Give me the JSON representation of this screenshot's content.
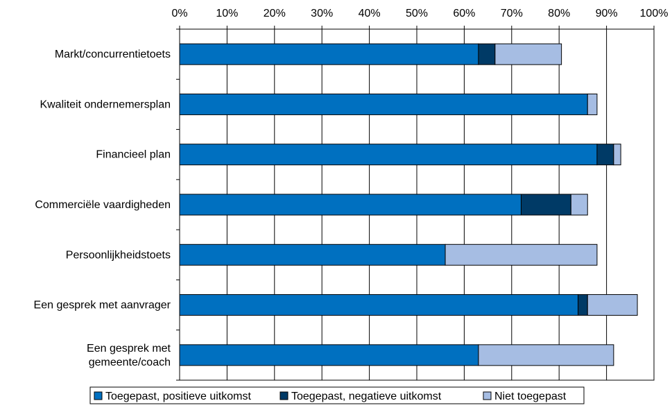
{
  "chart_data": {
    "type": "bar",
    "orientation": "horizontal",
    "stacked": true,
    "title": "",
    "xlabel": "",
    "ylabel": "",
    "xlim": [
      0,
      100
    ],
    "x_tick_labels": [
      "0%",
      "10%",
      "20%",
      "30%",
      "40%",
      "50%",
      "60%",
      "70%",
      "80%",
      "90%",
      "100%"
    ],
    "x_axis_position": "top",
    "grid": {
      "vertical": true,
      "horizontal": false
    },
    "legend_position": "bottom",
    "categories": [
      [
        "Markt/concurrentietoets"
      ],
      [
        "Kwaliteit ondernemersplan"
      ],
      [
        "Financieel plan"
      ],
      [
        "Commerciële vaardigheden"
      ],
      [
        "Persoonlijkheidstoets"
      ],
      [
        "Een gesprek met aanvrager"
      ],
      [
        "Een gesprek met",
        "gemeente/coach"
      ]
    ],
    "series": [
      {
        "name": "Toegepast, positieve uitkomst",
        "color": "#0070C0",
        "values": [
          63,
          86,
          88,
          72,
          56,
          84,
          63
        ]
      },
      {
        "name": "Toegepast, negatieve uitkomst",
        "color": "#003A66",
        "values": [
          3.5,
          0,
          3.5,
          10.5,
          0,
          2,
          0
        ]
      },
      {
        "name": "Niet toegepast",
        "color": "#A6BDE3",
        "values": [
          14,
          2,
          1.5,
          3.5,
          32,
          10.5,
          28.5
        ]
      }
    ]
  }
}
